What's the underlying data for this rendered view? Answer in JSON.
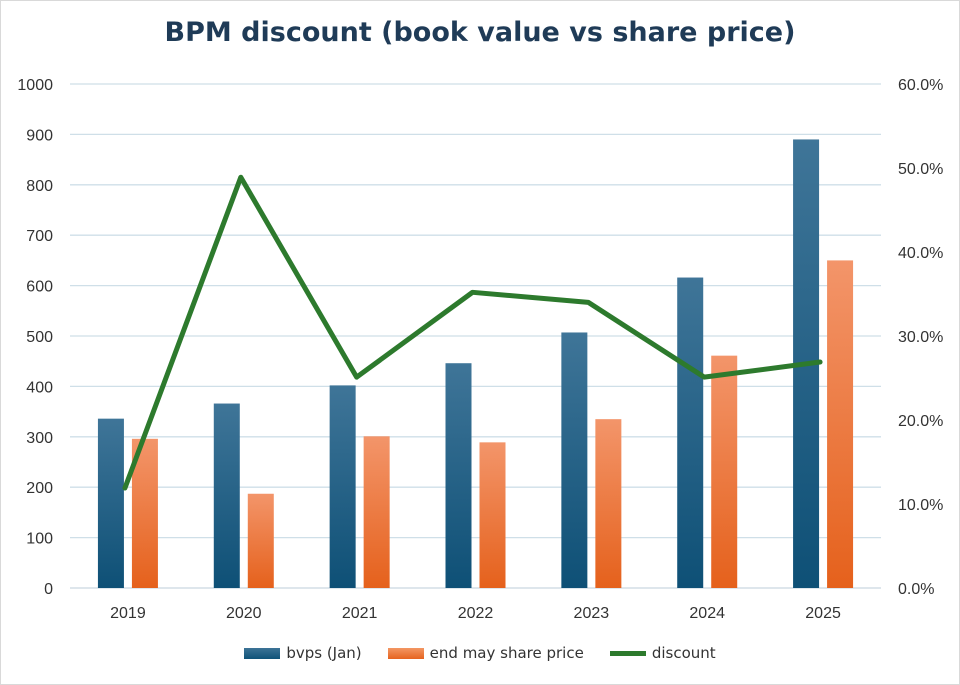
{
  "chart_data": {
    "type": "bar",
    "title": "BPM discount (book value vs share price)",
    "categories": [
      "2019",
      "2020",
      "2021",
      "2022",
      "2023",
      "2024",
      "2025"
    ],
    "series": [
      {
        "name": "bvps (Jan)",
        "kind": "bar",
        "axis": "left",
        "color": "#1e5c85",
        "values": [
          336,
          366,
          402,
          446,
          507,
          616,
          890
        ]
      },
      {
        "name": "end may share price",
        "kind": "bar",
        "axis": "left",
        "color": "#f07a3a",
        "values": [
          296,
          187,
          301,
          289,
          335,
          461,
          650
        ]
      },
      {
        "name": "discount",
        "kind": "line",
        "axis": "right",
        "color": "#2d7a2d",
        "values": [
          0.119,
          0.489,
          0.251,
          0.352,
          0.34,
          0.251,
          0.269
        ]
      }
    ],
    "y_left": {
      "ylim": [
        0,
        1000
      ],
      "ticks": [
        "0",
        "100",
        "200",
        "300",
        "400",
        "500",
        "600",
        "700",
        "800",
        "900",
        "1000"
      ]
    },
    "y_right": {
      "ylim": [
        0,
        0.6
      ],
      "ticks": [
        "0.0%",
        "10.0%",
        "20.0%",
        "30.0%",
        "40.0%",
        "50.0%",
        "60.0%"
      ]
    },
    "grid": true,
    "legend_position": "bottom"
  }
}
